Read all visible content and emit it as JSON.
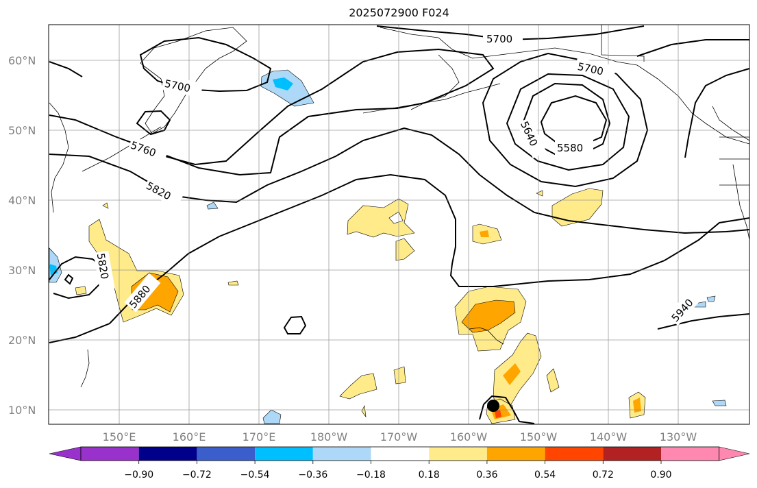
{
  "title": "2025072900 F024",
  "lat_labels": [
    "60°N",
    "50°N",
    "40°N",
    "30°N",
    "20°N",
    "10°N"
  ],
  "lon_labels": [
    "150°E",
    "160°E",
    "170°E",
    "180°W",
    "170°W",
    "160°W",
    "150°W",
    "140°W",
    "130°W"
  ],
  "contour_labels": [
    "5700",
    "5700",
    "5700",
    "5760",
    "5820",
    "5820",
    "5880",
    "5640",
    "5580",
    "5940"
  ],
  "colorbar": {
    "ticks": [
      "−0.90",
      "−0.72",
      "−0.54",
      "−0.36",
      "−0.18",
      "0.18",
      "0.36",
      "0.54",
      "0.72",
      "0.90"
    ],
    "colors": [
      "#9932cc",
      "#00008b",
      "#3a5fcd",
      "#00bfff",
      "#add8f7",
      "#ffffff",
      "#ffeb8a",
      "#ffa500",
      "#ff4500",
      "#b22222",
      "#ff88b0"
    ]
  }
}
